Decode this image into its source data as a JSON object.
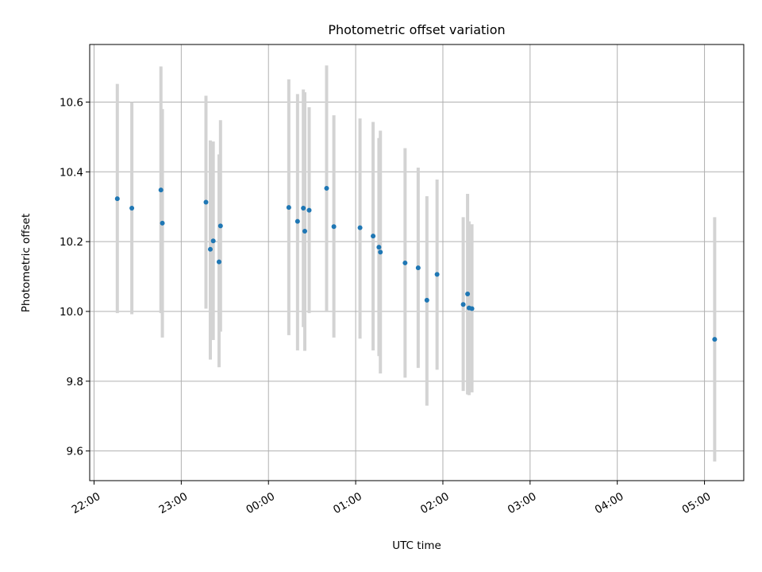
{
  "chart_data": {
    "type": "scatter",
    "title": "Photometric offset variation",
    "xlabel": "UTC time",
    "ylabel": "Photometric offset",
    "x_ticks": [
      "22:00",
      "23:00",
      "00:00",
      "01:00",
      "02:00",
      "03:00",
      "04:00",
      "05:00"
    ],
    "y_ticks": [
      9.6,
      9.8,
      10.0,
      10.2,
      10.4,
      10.6
    ],
    "xlim": [
      "21:57",
      "05:27"
    ],
    "ylim": [
      9.515,
      10.765
    ],
    "grid": true,
    "colors": {
      "points": "#1f77b4",
      "errorbars": "#d3d3d3",
      "grid": "#b0b0b0"
    },
    "series": [
      {
        "points": [
          {
            "t": "22:16",
            "y": 10.323,
            "lo": 9.995,
            "hi": 10.652
          },
          {
            "t": "22:26",
            "y": 10.296,
            "lo": 9.992,
            "hi": 10.6
          },
          {
            "t": "22:46",
            "y": 10.348,
            "lo": 9.995,
            "hi": 10.702
          },
          {
            "t": "22:47",
            "y": 10.253,
            "lo": 9.925,
            "hi": 10.58
          },
          {
            "t": "23:17",
            "y": 10.313,
            "lo": 10.008,
            "hi": 10.618
          },
          {
            "t": "23:20",
            "y": 10.178,
            "lo": 9.862,
            "hi": 10.49
          },
          {
            "t": "23:22",
            "y": 10.202,
            "lo": 9.918,
            "hi": 10.487
          },
          {
            "t": "23:26",
            "y": 10.142,
            "lo": 9.84,
            "hi": 10.45
          },
          {
            "t": "23:27",
            "y": 10.245,
            "lo": 9.942,
            "hi": 10.548
          },
          {
            "t": "00:14",
            "y": 10.298,
            "lo": 9.932,
            "hi": 10.665
          },
          {
            "t": "00:20",
            "y": 10.258,
            "lo": 9.888,
            "hi": 10.623
          },
          {
            "t": "00:24",
            "y": 10.296,
            "lo": 9.955,
            "hi": 10.636
          },
          {
            "t": "00:25",
            "y": 10.23,
            "lo": 9.887,
            "hi": 10.628
          },
          {
            "t": "00:28",
            "y": 10.29,
            "lo": 9.995,
            "hi": 10.585
          },
          {
            "t": "00:40",
            "y": 10.353,
            "lo": 10.0,
            "hi": 10.705
          },
          {
            "t": "00:45",
            "y": 10.243,
            "lo": 9.925,
            "hi": 10.562
          },
          {
            "t": "01:03",
            "y": 10.24,
            "lo": 9.922,
            "hi": 10.553
          },
          {
            "t": "01:12",
            "y": 10.216,
            "lo": 9.888,
            "hi": 10.543
          },
          {
            "t": "01:16",
            "y": 10.184,
            "lo": 9.872,
            "hi": 10.497
          },
          {
            "t": "01:17",
            "y": 10.17,
            "lo": 9.822,
            "hi": 10.518
          },
          {
            "t": "01:34",
            "y": 10.139,
            "lo": 9.81,
            "hi": 10.468
          },
          {
            "t": "01:43",
            "y": 10.125,
            "lo": 9.838,
            "hi": 10.412
          },
          {
            "t": "01:49",
            "y": 10.032,
            "lo": 9.73,
            "hi": 10.33
          },
          {
            "t": "01:56",
            "y": 10.106,
            "lo": 9.833,
            "hi": 10.378
          },
          {
            "t": "02:14",
            "y": 10.02,
            "lo": 9.772,
            "hi": 10.27
          },
          {
            "t": "02:17",
            "y": 10.05,
            "lo": 9.762,
            "hi": 10.337
          },
          {
            "t": "02:18",
            "y": 10.01,
            "lo": 9.76,
            "hi": 10.258
          },
          {
            "t": "02:20",
            "y": 10.008,
            "lo": 9.768,
            "hi": 10.25
          },
          {
            "t": "05:07",
            "y": 9.92,
            "lo": 9.57,
            "hi": 10.27
          }
        ]
      }
    ]
  }
}
